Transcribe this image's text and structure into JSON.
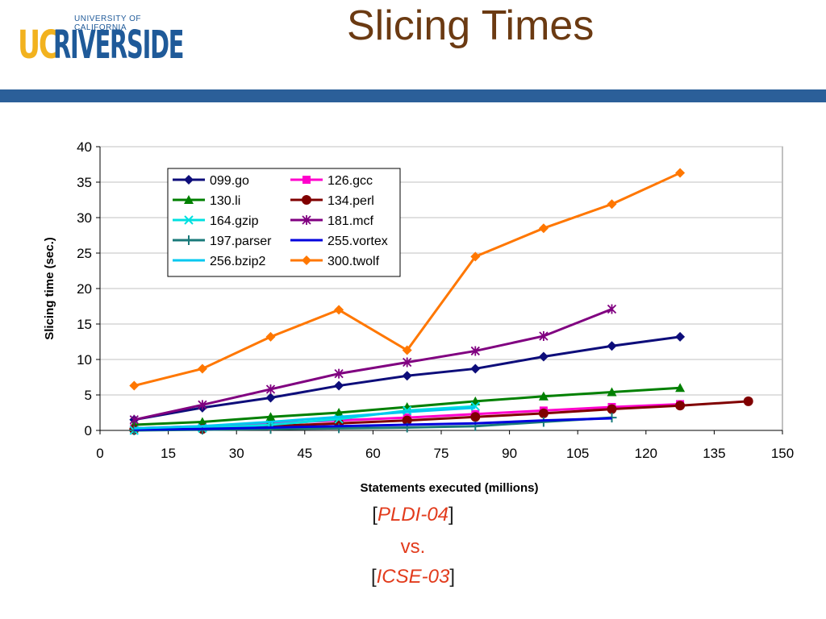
{
  "header": {
    "logo_top": "UNIVERSITY OF CALIFORNIA",
    "logo_uc": "UC",
    "logo_main": "RIVERSIDE",
    "title": "Slicing Times"
  },
  "colors": {
    "band": "#2b5f99",
    "title": "#6b3a12",
    "citation": "#e23b1c"
  },
  "citations": {
    "open": "[",
    "close": "]",
    "first": "PLDI-04",
    "middle": "vs.",
    "second": "ICSE-03"
  },
  "chart_data": {
    "type": "line",
    "xlabel": "Statements executed (millions)",
    "ylabel": "Slicing time (sec.)",
    "xlim": [
      0,
      150
    ],
    "ylim": [
      0,
      40
    ],
    "xticks": [
      "0",
      "15",
      "30",
      "45",
      "60",
      "75",
      "90",
      "105",
      "120",
      "135",
      "150"
    ],
    "yticks": [
      "0",
      "5",
      "10",
      "15",
      "20",
      "25",
      "30",
      "35",
      "40"
    ],
    "grid": "horizontal",
    "legend": "top-left",
    "series": [
      {
        "name": "099.go",
        "color": "#0d0d7a",
        "marker": "diamond",
        "x": [
          7.5,
          22.5,
          37.5,
          52.5,
          67.5,
          82.5,
          97.5,
          112.5,
          127.5
        ],
        "y": [
          1.5,
          3.2,
          4.6,
          6.3,
          7.7,
          8.7,
          10.4,
          11.9,
          13.2
        ]
      },
      {
        "name": "126.gcc",
        "color": "#ff00cc",
        "marker": "square",
        "x": [
          7.5,
          22.5,
          37.5,
          52.5,
          67.5,
          82.5,
          97.5,
          112.5,
          127.5
        ],
        "y": [
          0.3,
          0.6,
          1.0,
          1.4,
          1.8,
          2.3,
          2.8,
          3.3,
          3.7
        ]
      },
      {
        "name": "130.li",
        "color": "#008000",
        "marker": "triangle",
        "x": [
          7.5,
          22.5,
          37.5,
          52.5,
          67.5,
          82.5,
          97.5,
          112.5,
          127.5
        ],
        "y": [
          0.8,
          1.2,
          1.9,
          2.5,
          3.3,
          4.1,
          4.8,
          5.4,
          6.0
        ]
      },
      {
        "name": "134.perl",
        "color": "#800000",
        "marker": "circle",
        "x": [
          7.5,
          22.5,
          37.5,
          52.5,
          67.5,
          82.5,
          97.5,
          112.5,
          127.5,
          142.5
        ],
        "y": [
          0.1,
          0.2,
          0.6,
          1.0,
          1.4,
          1.9,
          2.4,
          3.0,
          3.5,
          4.1
        ]
      },
      {
        "name": "164.gzip",
        "color": "#00e0e0",
        "marker": "x",
        "x": [
          7.5,
          22.5,
          37.5,
          52.5,
          67.5,
          82.5
        ],
        "y": [
          0.0,
          0.3,
          0.8,
          1.6,
          2.8,
          3.4
        ]
      },
      {
        "name": "181.mcf",
        "color": "#800080",
        "marker": "star",
        "x": [
          7.5,
          22.5,
          37.5,
          52.5,
          67.5,
          82.5,
          97.5,
          112.5
        ],
        "y": [
          1.5,
          3.6,
          5.8,
          8.0,
          9.6,
          11.2,
          13.3,
          17.1
        ]
      },
      {
        "name": "197.parser",
        "color": "#1a7a7a",
        "marker": "plus",
        "x": [
          7.5,
          22.5,
          37.5,
          52.5,
          67.5,
          82.5,
          97.5,
          112.5
        ],
        "y": [
          0.0,
          0.1,
          0.2,
          0.3,
          0.4,
          0.6,
          1.2,
          1.8
        ]
      },
      {
        "name": "255.vortex",
        "color": "#0000dd",
        "marker": "none",
        "x": [
          7.5,
          22.5,
          37.5,
          52.5,
          67.5,
          82.5,
          97.5,
          112.5
        ],
        "y": [
          0.1,
          0.2,
          0.4,
          0.6,
          0.8,
          1.0,
          1.4,
          1.7
        ]
      },
      {
        "name": "256.bzip2",
        "color": "#00c8f0",
        "marker": "none",
        "x": [
          7.5,
          22.5,
          37.5,
          52.5,
          67.5,
          82.5
        ],
        "y": [
          0.3,
          0.6,
          1.2,
          1.9,
          2.6,
          3.2
        ]
      },
      {
        "name": "300.twolf",
        "color": "#ff7700",
        "marker": "diamond",
        "x": [
          7.5,
          22.5,
          37.5,
          52.5,
          67.5,
          82.5,
          97.5,
          112.5,
          127.5
        ],
        "y": [
          6.3,
          8.7,
          13.2,
          17.0,
          11.3,
          24.5,
          28.5,
          31.9,
          36.3
        ]
      }
    ]
  }
}
